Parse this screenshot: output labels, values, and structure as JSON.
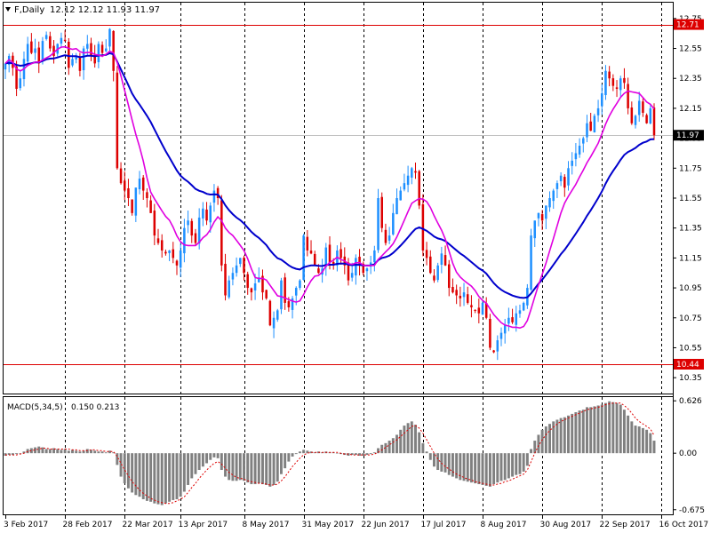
{
  "header": {
    "symbol_label": "F,Daily",
    "ohlc_text": "12.12 12.12 11.93 11.97",
    "menu_icon": "triangle-down-icon"
  },
  "macd_header": {
    "label": "MACD(5,34,5)",
    "values_text": "0.150 0.213"
  },
  "colors": {
    "bull_candle": "#1e90ff",
    "bear_candle": "#dd0000",
    "ma_fast": "#e000e0",
    "ma_slow": "#0000cc",
    "level_line": "#dd0000",
    "macd_hist": "#808080",
    "macd_signal": "#dd0000",
    "grid": "#000000"
  },
  "chart_data": [
    {
      "type": "candlestick",
      "title": "F,Daily",
      "ylim": [
        10.25,
        12.85
      ],
      "y_ticks": [
        "12.75",
        "12.55",
        "12.35",
        "12.15",
        "11.95",
        "11.75",
        "11.55",
        "11.35",
        "11.15",
        "10.95",
        "10.75",
        "10.55",
        "10.35"
      ],
      "x_ticks": [
        "3 Feb 2017",
        "28 Feb 2017",
        "22 Mar 2017",
        "13 Apr 2017",
        "8 May 2017",
        "31 May 2017",
        "22 Jun 2017",
        "17 Jul 2017",
        "8 Aug 2017",
        "30 Aug 2017",
        "22 Sep 2017",
        "16 Oct 2017"
      ],
      "x_tick_index": [
        0,
        16,
        32,
        47,
        64,
        80,
        96,
        112,
        128,
        144,
        160,
        176
      ],
      "grid": "vertical dashed",
      "horizontal_levels": [
        {
          "value": 12.71,
          "label": "12.71"
        },
        {
          "value": 10.44,
          "label": "10.44"
        }
      ],
      "current_price": {
        "value": 11.97,
        "label": "11.97"
      },
      "series": [
        {
          "name": "",
          "kind": "ohlc",
          "close": [
            12.45,
            12.5,
            12.42,
            12.28,
            12.35,
            12.48,
            12.58,
            12.52,
            12.55,
            12.45,
            12.6,
            12.64,
            12.55,
            12.5,
            12.58,
            12.62,
            12.6,
            12.42,
            12.48,
            12.5,
            12.4,
            12.55,
            12.58,
            12.5,
            12.45,
            12.58,
            12.52,
            12.55,
            12.68,
            12.4,
            11.75,
            11.65,
            11.6,
            11.55,
            11.45,
            11.62,
            11.68,
            11.6,
            11.55,
            11.45,
            11.3,
            11.25,
            11.2,
            11.18,
            11.2,
            11.15,
            11.1,
            11.2,
            11.35,
            11.4,
            11.3,
            11.25,
            11.42,
            11.48,
            11.4,
            11.5,
            11.6,
            11.55,
            11.1,
            10.9,
            11.0,
            11.05,
            11.1,
            11.15,
            11.05,
            10.95,
            10.92,
            10.98,
            11.02,
            10.92,
            10.88,
            10.7,
            10.75,
            10.8,
            11.0,
            10.85,
            10.82,
            10.88,
            10.95,
            11.0,
            11.3,
            11.2,
            11.18,
            11.1,
            11.05,
            11.08,
            11.22,
            11.12,
            11.1,
            11.2,
            11.15,
            11.1,
            11.0,
            11.05,
            11.15,
            11.1,
            11.05,
            11.08,
            11.12,
            11.2,
            11.55,
            11.35,
            11.25,
            11.3,
            11.45,
            11.55,
            11.6,
            11.65,
            11.7,
            11.75,
            11.72,
            11.5,
            11.2,
            11.15,
            11.05,
            11.0,
            11.1,
            11.18,
            11.1,
            10.95,
            10.92,
            10.9,
            10.88,
            10.92,
            10.85,
            10.82,
            10.8,
            10.78,
            10.85,
            10.75,
            10.55,
            10.52,
            10.6,
            10.65,
            10.7,
            10.75,
            10.72,
            10.78,
            10.8,
            10.85,
            10.95,
            11.3,
            11.4,
            11.45,
            11.4,
            11.5,
            11.55,
            11.6,
            11.65,
            11.7,
            11.62,
            11.75,
            11.8,
            11.85,
            11.9,
            11.95,
            12.05,
            12.0,
            12.1,
            12.15,
            12.25,
            12.4,
            12.35,
            12.3,
            12.28,
            12.35,
            12.32,
            12.15,
            12.05,
            12.1,
            12.2,
            12.12,
            12.05,
            12.15,
            11.97
          ]
        }
      ]
    },
    {
      "type": "histogram",
      "title": "MACD(5,34,5)",
      "ylim": [
        -0.72,
        0.66
      ],
      "y_ticks": [
        "0.626",
        "0.00",
        "-0.675"
      ],
      "series": [
        {
          "name": "",
          "kind": "histogram",
          "values": [
            -0.03,
            -0.02,
            -0.02,
            -0.01,
            0.0,
            0.02,
            0.05,
            0.06,
            0.07,
            0.08,
            0.07,
            0.05,
            0.05,
            0.06,
            0.05,
            0.04,
            0.05,
            0.03,
            0.04,
            0.03,
            0.02,
            0.03,
            0.05,
            0.04,
            0.03,
            0.02,
            0.02,
            0.01,
            0.03,
            0.01,
            -0.14,
            -0.28,
            -0.36,
            -0.42,
            -0.47,
            -0.5,
            -0.52,
            -0.55,
            -0.57,
            -0.58,
            -0.6,
            -0.61,
            -0.62,
            -0.6,
            -0.58,
            -0.56,
            -0.55,
            -0.52,
            -0.46,
            -0.38,
            -0.3,
            -0.25,
            -0.2,
            -0.16,
            -0.12,
            -0.08,
            -0.05,
            -0.06,
            -0.2,
            -0.28,
            -0.32,
            -0.33,
            -0.33,
            -0.32,
            -0.33,
            -0.35,
            -0.37,
            -0.37,
            -0.36,
            -0.37,
            -0.38,
            -0.4,
            -0.38,
            -0.34,
            -0.25,
            -0.18,
            -0.1,
            -0.04,
            -0.01,
            0.02,
            0.04,
            0.03,
            0.02,
            0.01,
            0.02,
            0.01,
            0.02,
            0.01,
            0.01,
            0.0,
            -0.01,
            -0.02,
            -0.03,
            -0.02,
            -0.02,
            -0.03,
            -0.03,
            -0.02,
            -0.01,
            0.01,
            0.06,
            0.1,
            0.12,
            0.15,
            0.18,
            0.22,
            0.28,
            0.33,
            0.36,
            0.38,
            0.34,
            0.25,
            0.12,
            0.02,
            -0.08,
            -0.16,
            -0.2,
            -0.22,
            -0.23,
            -0.26,
            -0.28,
            -0.3,
            -0.32,
            -0.33,
            -0.34,
            -0.35,
            -0.36,
            -0.37,
            -0.38,
            -0.39,
            -0.4,
            -0.37,
            -0.35,
            -0.33,
            -0.32,
            -0.3,
            -0.28,
            -0.26,
            -0.25,
            -0.22,
            -0.15,
            0.05,
            0.15,
            0.22,
            0.28,
            0.32,
            0.35,
            0.38,
            0.4,
            0.42,
            0.43,
            0.45,
            0.47,
            0.49,
            0.51,
            0.52,
            0.55,
            0.55,
            0.56,
            0.57,
            0.58,
            0.6,
            0.62,
            0.61,
            0.6,
            0.58,
            0.52,
            0.45,
            0.38,
            0.33,
            0.32,
            0.3,
            0.28,
            0.24,
            0.15
          ]
        },
        {
          "name": "",
          "kind": "signal",
          "values": [
            -0.02,
            -0.02,
            -0.02,
            -0.02,
            -0.01,
            0.0,
            0.02,
            0.03,
            0.04,
            0.05,
            0.06,
            0.06,
            0.05,
            0.05,
            0.05,
            0.05,
            0.05,
            0.05,
            0.04,
            0.04,
            0.03,
            0.03,
            0.03,
            0.04,
            0.04,
            0.03,
            0.03,
            0.02,
            0.02,
            0.02,
            -0.04,
            -0.12,
            -0.2,
            -0.27,
            -0.34,
            -0.39,
            -0.44,
            -0.48,
            -0.51,
            -0.54,
            -0.56,
            -0.58,
            -0.59,
            -0.6,
            -0.6,
            -0.59,
            -0.57,
            -0.55,
            -0.52,
            -0.47,
            -0.41,
            -0.36,
            -0.3,
            -0.25,
            -0.2,
            -0.16,
            -0.12,
            -0.1,
            -0.13,
            -0.18,
            -0.23,
            -0.26,
            -0.29,
            -0.3,
            -0.31,
            -0.33,
            -0.34,
            -0.35,
            -0.36,
            -0.36,
            -0.37,
            -0.38,
            -0.38,
            -0.37,
            -0.33,
            -0.28,
            -0.22,
            -0.16,
            -0.11,
            -0.06,
            -0.02,
            0.0,
            0.01,
            0.01,
            0.01,
            0.01,
            0.01,
            0.01,
            0.01,
            0.01,
            0.0,
            -0.01,
            -0.01,
            -0.02,
            -0.02,
            -0.02,
            -0.02,
            -0.02,
            -0.02,
            -0.01,
            0.01,
            0.04,
            0.07,
            0.1,
            0.13,
            0.16,
            0.2,
            0.24,
            0.28,
            0.32,
            0.33,
            0.3,
            0.24,
            0.16,
            0.08,
            0.0,
            -0.07,
            -0.12,
            -0.16,
            -0.19,
            -0.22,
            -0.25,
            -0.27,
            -0.29,
            -0.31,
            -0.32,
            -0.34,
            -0.35,
            -0.36,
            -0.37,
            -0.38,
            -0.38,
            -0.37,
            -0.36,
            -0.34,
            -0.33,
            -0.31,
            -0.29,
            -0.27,
            -0.25,
            -0.2,
            -0.1,
            0.0,
            0.09,
            0.16,
            0.22,
            0.27,
            0.31,
            0.35,
            0.38,
            0.4,
            0.42,
            0.44,
            0.46,
            0.48,
            0.5,
            0.52,
            0.53,
            0.54,
            0.55,
            0.56,
            0.58,
            0.59,
            0.6,
            0.6,
            0.6,
            0.57,
            0.53,
            0.48,
            0.42,
            0.38,
            0.35,
            0.32,
            0.29,
            0.213
          ]
        }
      ]
    }
  ]
}
